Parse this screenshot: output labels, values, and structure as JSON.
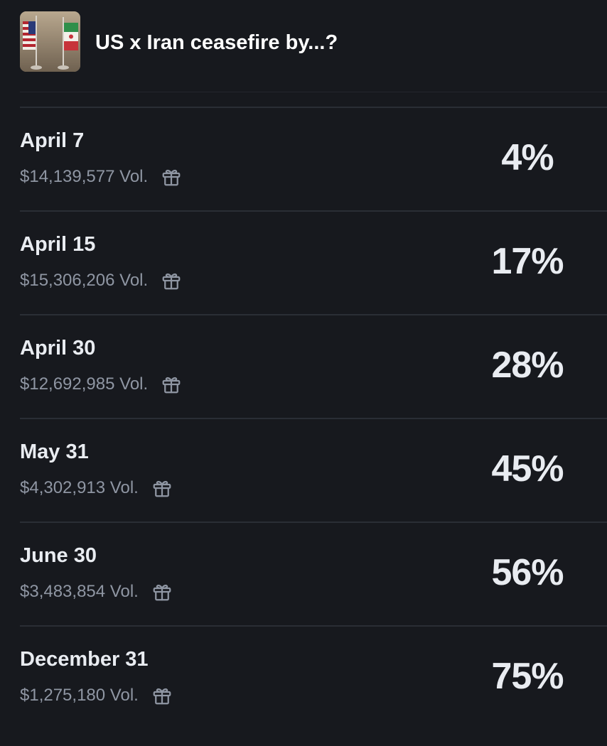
{
  "market": {
    "title": "US x Iran ceasefire by...?",
    "thumbnail_icon": "flags-us-iran-icon"
  },
  "outcomes": [
    {
      "date": "April 7",
      "volume": "$14,139,577 Vol.",
      "probability": "4%"
    },
    {
      "date": "April 15",
      "volume": "$15,306,206 Vol.",
      "probability": "17%"
    },
    {
      "date": "April 30",
      "volume": "$12,692,985 Vol.",
      "probability": "28%"
    },
    {
      "date": "May 31",
      "volume": "$4,302,913 Vol.",
      "probability": "45%"
    },
    {
      "date": "June 30",
      "volume": "$3,483,854 Vol.",
      "probability": "56%"
    },
    {
      "date": "December 31",
      "volume": "$1,275,180 Vol.",
      "probability": "75%"
    }
  ],
  "icons": {
    "reward": "gift-icon"
  },
  "colors": {
    "background": "#17191e",
    "divider": "#2a2e35",
    "primary_text": "#e9ecf1",
    "secondary_text": "#8f96a3"
  }
}
